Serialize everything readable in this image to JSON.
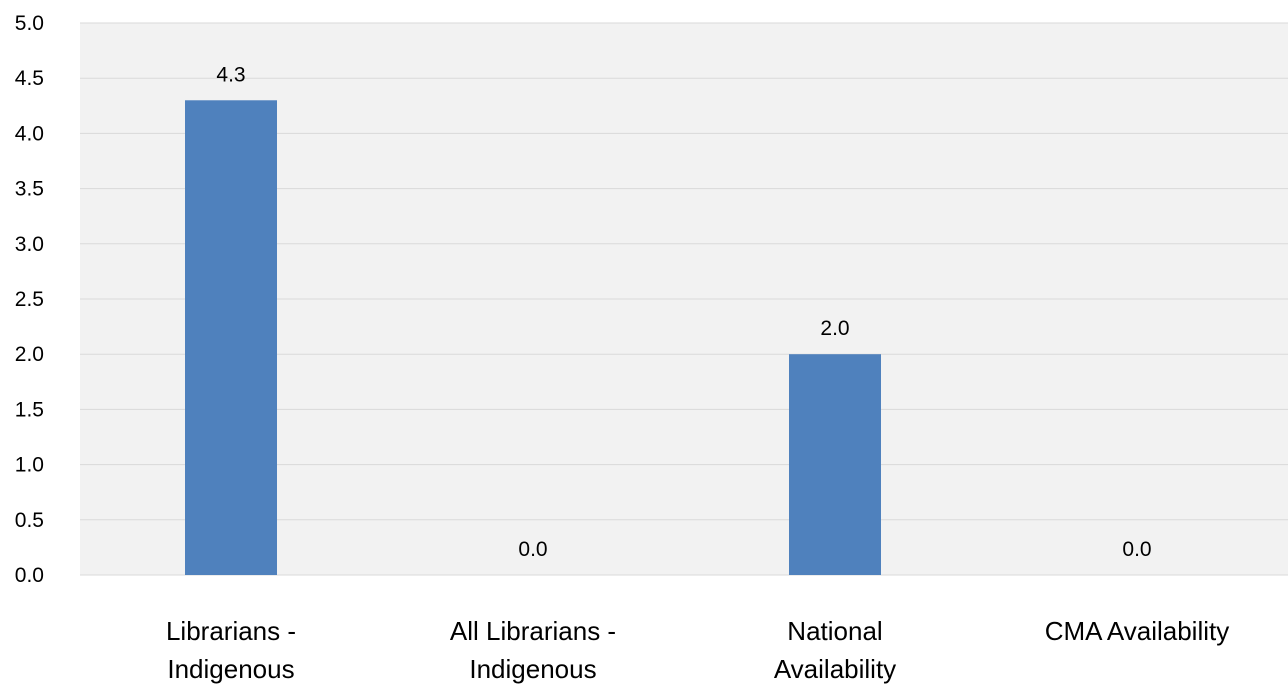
{
  "chart_data": {
    "type": "bar",
    "categories": [
      [
        "Librarians -",
        "Indigenous"
      ],
      [
        "All Librarians -",
        "Indigenous"
      ],
      [
        "National",
        "Availability"
      ],
      [
        "CMA Availability"
      ]
    ],
    "values": [
      4.3,
      0.0,
      2.0,
      0.0
    ],
    "value_labels": [
      "4.3",
      "0.0",
      "2.0",
      "0.0"
    ],
    "ylim": [
      0,
      5
    ],
    "y_ticks": [
      "0.0",
      "0.5",
      "1.0",
      "1.5",
      "2.0",
      "2.5",
      "3.0",
      "3.5",
      "4.0",
      "4.5",
      "5.0"
    ],
    "grid": true,
    "colors": {
      "bar": "#4f81bd",
      "plot_background": "#f2f2f2",
      "gridline": "#d9d9d9"
    }
  }
}
